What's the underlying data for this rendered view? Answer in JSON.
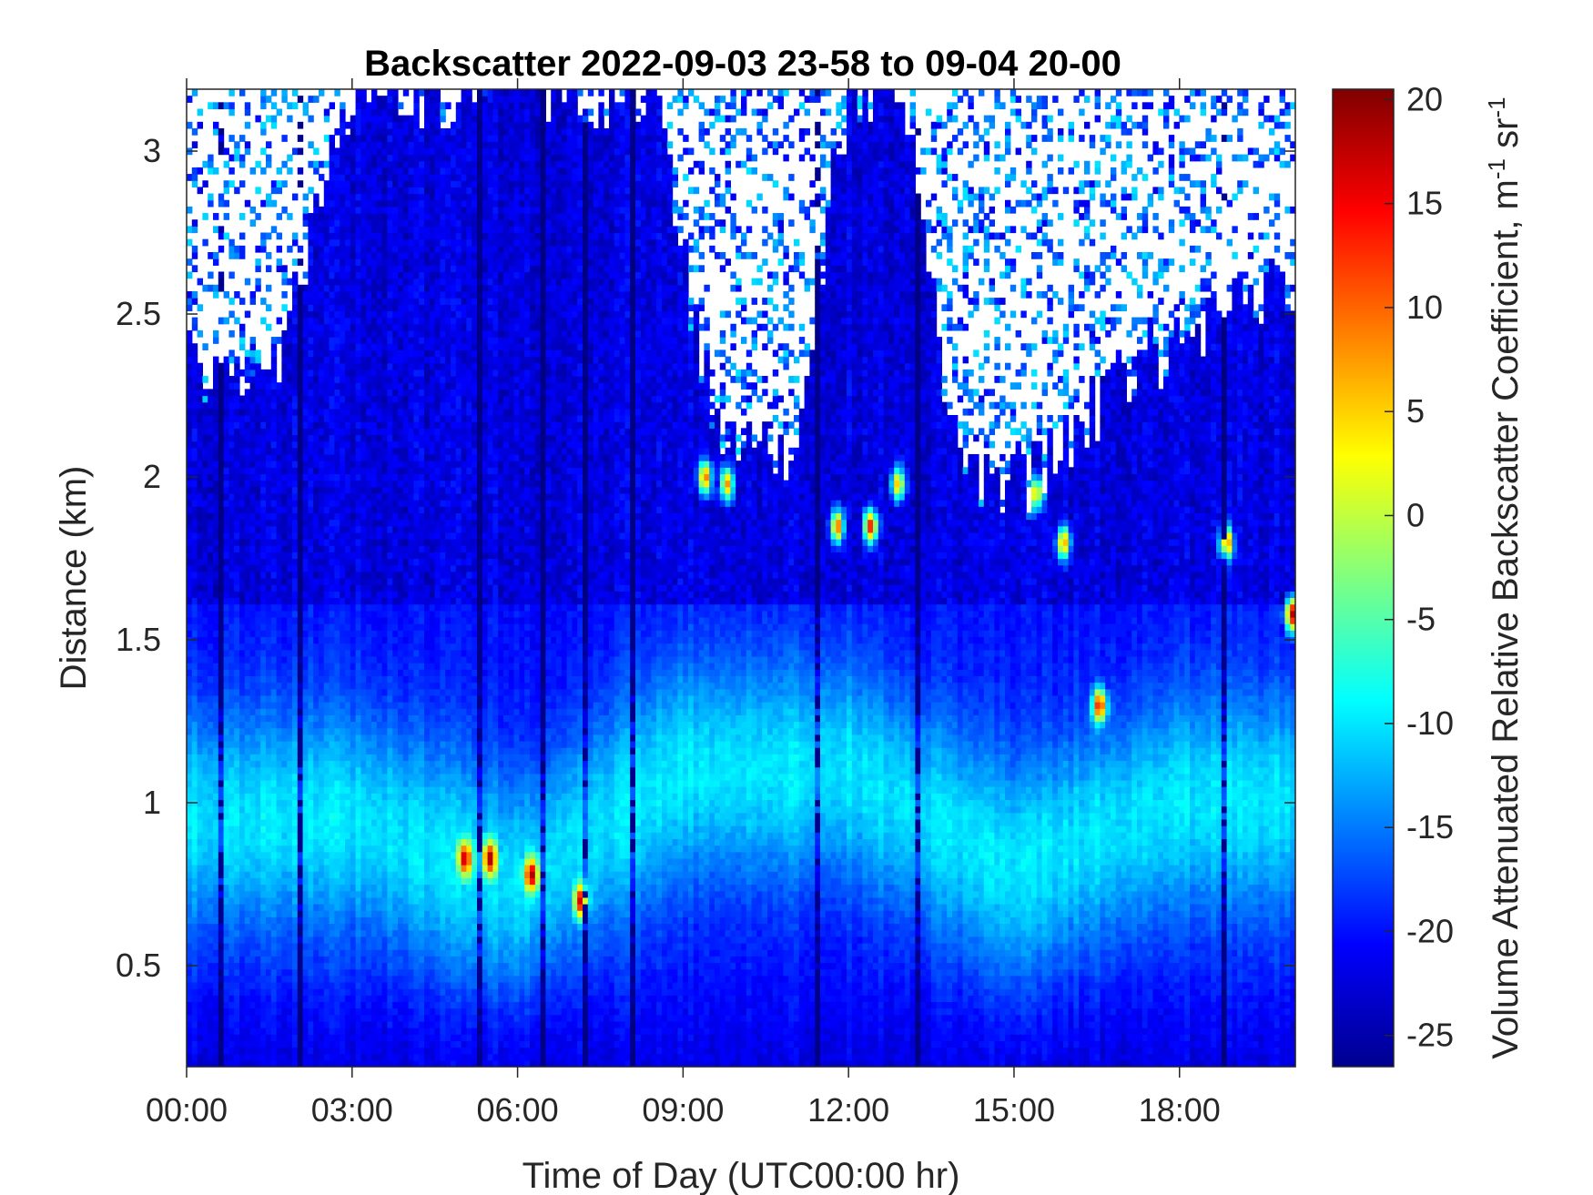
{
  "chart_data": {
    "type": "heatmap",
    "title": "Backscatter 2022-09-03 23-58 to 09-04 20-00",
    "xlabel": "Time of Day (UTC00:00 hr)",
    "ylabel": "Distance (km)",
    "colorbar_label": "Volume Attenuated Relative Backscatter Coefficient, m",
    "colorbar_label_sup1": "-1",
    "colorbar_label_mid": " sr",
    "colorbar_label_sup2": "-1",
    "xlim_hours": [
      0,
      20.1
    ],
    "ylim_km": [
      0.19,
      3.19
    ],
    "clim": [
      -26.5,
      20.5
    ],
    "colormap": "jet",
    "x_ticks": [
      {
        "value": 0,
        "label": "00:00"
      },
      {
        "value": 3,
        "label": "03:00"
      },
      {
        "value": 6,
        "label": "06:00"
      },
      {
        "value": 9,
        "label": "09:00"
      },
      {
        "value": 12,
        "label": "12:00"
      },
      {
        "value": 15,
        "label": "15:00"
      },
      {
        "value": 18,
        "label": "18:00"
      }
    ],
    "y_ticks": [
      {
        "value": 0.5,
        "label": "0.5"
      },
      {
        "value": 1,
        "label": "1"
      },
      {
        "value": 1.5,
        "label": "1.5"
      },
      {
        "value": 2,
        "label": "2"
      },
      {
        "value": 2.5,
        "label": "2.5"
      },
      {
        "value": 3,
        "label": "3"
      }
    ],
    "colorbar_ticks": [
      {
        "value": 20,
        "label": "20"
      },
      {
        "value": 15,
        "label": "15"
      },
      {
        "value": 10,
        "label": "10"
      },
      {
        "value": 5,
        "label": "5"
      },
      {
        "value": 0,
        "label": "0"
      },
      {
        "value": -5,
        "label": "-5"
      },
      {
        "value": -10,
        "label": "-10"
      },
      {
        "value": -15,
        "label": "-15"
      },
      {
        "value": -20,
        "label": "-20"
      },
      {
        "value": -25,
        "label": "-25"
      }
    ],
    "grid": false,
    "colors": {
      "background": "#ffffff",
      "axis": "#262626",
      "no_data": "#ffffff"
    },
    "field": {
      "description": "Lidar backscatter curtain; approximate values in colorbar units",
      "cloud_base_km": [
        {
          "hour": 0.0,
          "top_km": 2.35
        },
        {
          "hour": 1.5,
          "top_km": 2.25
        },
        {
          "hour": 3.0,
          "top_km": 3.19
        },
        {
          "hour": 5.0,
          "top_km": 3.19
        },
        {
          "hour": 6.5,
          "top_km": 3.19
        },
        {
          "hour": 8.5,
          "top_km": 3.19
        },
        {
          "hour": 9.5,
          "top_km": 2.2
        },
        {
          "hour": 11.0,
          "top_km": 2.1
        },
        {
          "hour": 12.0,
          "top_km": 3.19
        },
        {
          "hour": 13.0,
          "top_km": 3.19
        },
        {
          "hour": 14.0,
          "top_km": 2.0
        },
        {
          "hour": 15.5,
          "top_km": 2.0
        },
        {
          "hour": 17.0,
          "top_km": 2.3
        },
        {
          "hour": 18.5,
          "top_km": 2.5
        },
        {
          "hour": 20.1,
          "top_km": 2.6
        }
      ],
      "boundary_layer_peak_km": [
        {
          "hour": 0.0,
          "km": 0.95
        },
        {
          "hour": 3.0,
          "km": 0.95
        },
        {
          "hour": 6.0,
          "km": 0.75
        },
        {
          "hour": 9.0,
          "km": 1.1
        },
        {
          "hour": 12.0,
          "km": 1.1
        },
        {
          "hour": 15.0,
          "km": 0.8
        },
        {
          "hour": 18.0,
          "km": 1.0
        },
        {
          "hour": 20.1,
          "km": 1.0
        }
      ],
      "hotspots": [
        {
          "hour": 5.05,
          "km": 0.83,
          "value": 18
        },
        {
          "hour": 5.5,
          "km": 0.83,
          "value": 19
        },
        {
          "hour": 6.25,
          "km": 0.78,
          "value": 19
        },
        {
          "hour": 7.15,
          "km": 0.7,
          "value": 17
        },
        {
          "hour": 9.4,
          "km": 2.0,
          "value": 10
        },
        {
          "hour": 9.8,
          "km": 1.98,
          "value": 8
        },
        {
          "hour": 11.8,
          "km": 1.85,
          "value": 10
        },
        {
          "hour": 12.4,
          "km": 1.85,
          "value": 14
        },
        {
          "hour": 12.9,
          "km": 1.98,
          "value": 6
        },
        {
          "hour": 15.4,
          "km": 1.95,
          "value": 5
        },
        {
          "hour": 15.9,
          "km": 1.8,
          "value": 8
        },
        {
          "hour": 16.55,
          "km": 1.3,
          "value": 15
        },
        {
          "hour": 18.85,
          "km": 1.8,
          "value": 12
        },
        {
          "hour": 20.05,
          "km": 1.58,
          "value": 18
        }
      ],
      "dropout_columns_hours": [
        0.65,
        2.05,
        5.35,
        6.45,
        7.2,
        8.1,
        11.4,
        13.3,
        18.85
      ]
    }
  }
}
